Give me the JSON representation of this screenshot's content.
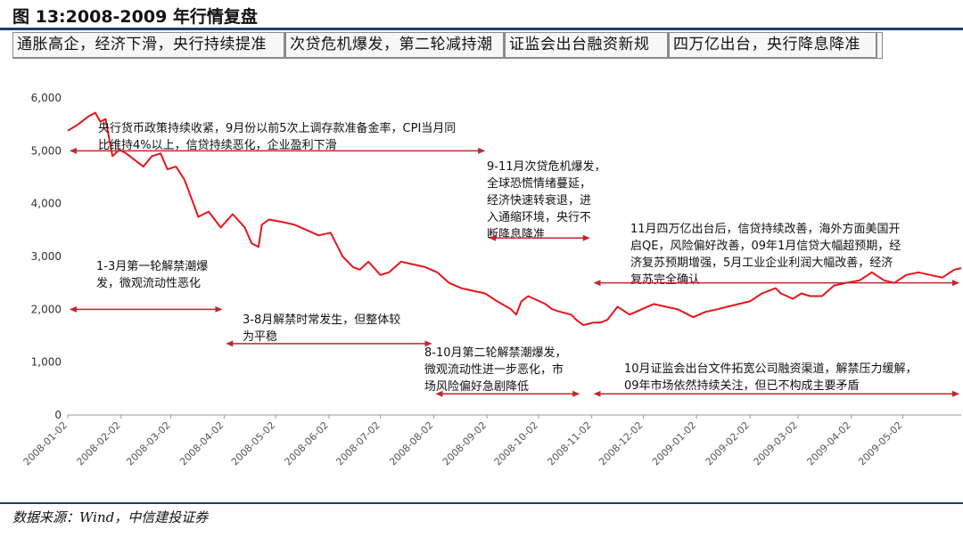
{
  "title": "图 13:2008-2009 年行情复盘",
  "phases": [
    "通胀高企，经济下滑，央行持续提准",
    "次贷危机爆发，第二轮减持潮",
    "证监会出台融资新规",
    "四万亿出台，央行降息降准"
  ],
  "source": "数据来源：Wind，中信建投证券",
  "colors": {
    "line": "#e8141b",
    "arrow": "#c0262c",
    "axis": "#999999",
    "title_rule": "#1f3e6b"
  },
  "chart_data": {
    "type": "line",
    "title": "",
    "xlabel": "",
    "ylabel": "",
    "ylim": [
      0,
      6000
    ],
    "yticks": [
      0,
      1000,
      2000,
      3000,
      4000,
      5000,
      6000
    ],
    "ytick_labels": [
      "0",
      "1,000",
      "2,000",
      "3,000",
      "4,000",
      "5,000",
      "6,000"
    ],
    "xlim": [
      "2008-01-02",
      "2009-06-05"
    ],
    "xticks": [
      "2008-01-02",
      "2008-02-02",
      "2008-03-02",
      "2008-04-02",
      "2008-05-02",
      "2008-06-02",
      "2008-07-02",
      "2008-08-02",
      "2008-09-02",
      "2008-10-02",
      "2008-11-02",
      "2008-12-02",
      "2009-01-02",
      "2009-02-02",
      "2009-03-02",
      "2009-04-02",
      "2009-05-02"
    ],
    "grid": false,
    "legend": "none",
    "series": [
      {
        "points": [
          [
            "2008-01-02",
            5380
          ],
          [
            "2008-01-08",
            5500
          ],
          [
            "2008-01-14",
            5650
          ],
          [
            "2008-01-18",
            5720
          ],
          [
            "2008-01-21",
            5550
          ],
          [
            "2008-01-24",
            5600
          ],
          [
            "2008-01-28",
            4900
          ],
          [
            "2008-02-01",
            5020
          ],
          [
            "2008-02-05",
            4950
          ],
          [
            "2008-02-15",
            4700
          ],
          [
            "2008-02-20",
            4900
          ],
          [
            "2008-02-25",
            4950
          ],
          [
            "2008-02-29",
            4650
          ],
          [
            "2008-03-05",
            4700
          ],
          [
            "2008-03-10",
            4450
          ],
          [
            "2008-03-14",
            4100
          ],
          [
            "2008-03-18",
            3750
          ],
          [
            "2008-03-24",
            3850
          ],
          [
            "2008-03-31",
            3550
          ],
          [
            "2008-04-07",
            3800
          ],
          [
            "2008-04-14",
            3550
          ],
          [
            "2008-04-18",
            3250
          ],
          [
            "2008-04-22",
            3180
          ],
          [
            "2008-04-24",
            3600
          ],
          [
            "2008-04-28",
            3700
          ],
          [
            "2008-05-06",
            3650
          ],
          [
            "2008-05-13",
            3600
          ],
          [
            "2008-05-20",
            3500
          ],
          [
            "2008-05-27",
            3400
          ],
          [
            "2008-06-03",
            3450
          ],
          [
            "2008-06-10",
            3000
          ],
          [
            "2008-06-16",
            2800
          ],
          [
            "2008-06-20",
            2750
          ],
          [
            "2008-06-25",
            2900
          ],
          [
            "2008-07-02",
            2650
          ],
          [
            "2008-07-07",
            2700
          ],
          [
            "2008-07-14",
            2900
          ],
          [
            "2008-07-21",
            2850
          ],
          [
            "2008-07-28",
            2800
          ],
          [
            "2008-08-04",
            2700
          ],
          [
            "2008-08-11",
            2500
          ],
          [
            "2008-08-18",
            2400
          ],
          [
            "2008-08-25",
            2350
          ],
          [
            "2008-09-01",
            2300
          ],
          [
            "2008-09-08",
            2150
          ],
          [
            "2008-09-16",
            2000
          ],
          [
            "2008-09-19",
            1900
          ],
          [
            "2008-09-22",
            2150
          ],
          [
            "2008-09-26",
            2250
          ],
          [
            "2008-10-06",
            2100
          ],
          [
            "2008-10-10",
            2000
          ],
          [
            "2008-10-15",
            1950
          ],
          [
            "2008-10-21",
            1900
          ],
          [
            "2008-10-24",
            1800
          ],
          [
            "2008-10-28",
            1700
          ],
          [
            "2008-11-03",
            1750
          ],
          [
            "2008-11-07",
            1750
          ],
          [
            "2008-11-11",
            1800
          ],
          [
            "2008-11-17",
            2050
          ],
          [
            "2008-11-24",
            1900
          ],
          [
            "2008-12-01",
            2000
          ],
          [
            "2008-12-08",
            2100
          ],
          [
            "2008-12-15",
            2050
          ],
          [
            "2008-12-22",
            2000
          ],
          [
            "2008-12-31",
            1850
          ],
          [
            "2009-01-07",
            1950
          ],
          [
            "2009-01-14",
            2000
          ],
          [
            "2009-01-20",
            2050
          ],
          [
            "2009-02-02",
            2150
          ],
          [
            "2009-02-09",
            2300
          ],
          [
            "2009-02-17",
            2400
          ],
          [
            "2009-02-20",
            2300
          ],
          [
            "2009-02-27",
            2200
          ],
          [
            "2009-03-04",
            2300
          ],
          [
            "2009-03-09",
            2250
          ],
          [
            "2009-03-16",
            2250
          ],
          [
            "2009-03-23",
            2450
          ],
          [
            "2009-03-30",
            2500
          ],
          [
            "2009-04-07",
            2550
          ],
          [
            "2009-04-14",
            2700
          ],
          [
            "2009-04-21",
            2550
          ],
          [
            "2009-04-27",
            2500
          ],
          [
            "2009-05-04",
            2650
          ],
          [
            "2009-05-11",
            2700
          ],
          [
            "2009-05-18",
            2650
          ],
          [
            "2009-05-25",
            2600
          ],
          [
            "2009-06-01",
            2750
          ],
          [
            "2009-06-05",
            2780
          ]
        ]
      }
    ],
    "annotations": [
      {
        "text_lines": [
          "央行货币政策持续收紧，9月份以前5次上调存款准备金率，CPI当月同",
          "比维持4%以上，信贷持续恶化，企业盈利下滑"
        ],
        "arrow_from": "2008-01-02",
        "arrow_to": "2008-09-02",
        "arrow_y": 5000
      },
      {
        "text_lines": [
          "9-11月次贷危机爆发，",
          "全球恐慌情绪蔓延，",
          "经济快速转衰退，进",
          "入通缩环境，央行不",
          "断降息降准"
        ],
        "arrow_from": "2008-09-02",
        "arrow_to": "2008-11-02",
        "arrow_y": 3350
      },
      {
        "text_lines": [
          "11月四万亿出台后，信贷持续改善，海外方面美国开",
          "启QE，风险偏好改善，09年1月信贷大幅超预期，经",
          "济复苏预期增强，5月工业企业利润大幅改善，经济",
          "复苏完全确认"
        ],
        "arrow_from": "2008-11-02",
        "arrow_to": "2009-06-05",
        "arrow_y": 2500
      },
      {
        "text_lines": [
          "1-3月第一轮解禁潮爆",
          "发，微观流动性恶化"
        ],
        "arrow_from": "2008-01-02",
        "arrow_to": "2008-04-02",
        "arrow_y": 2000
      },
      {
        "text_lines": [
          "3-8月解禁时常发生，但整体较",
          "为平稳"
        ],
        "arrow_from": "2008-04-02",
        "arrow_to": "2008-08-02",
        "arrow_y": 1350
      },
      {
        "text_lines": [
          "8-10月第二轮解禁潮爆发，",
          "微观流动性进一步恶化，市",
          "场风险偏好急剧降低"
        ],
        "arrow_from": "2008-08-02",
        "arrow_to": "2008-10-27",
        "arrow_y": 400
      },
      {
        "text_lines": [
          "10月证监会出台文件拓宽公司融资渠道，解禁压力缓解，",
          "09年市场依然持续关注，但已不构成主要矛盾"
        ],
        "arrow_from": "2008-11-02",
        "arrow_to": "2009-06-05",
        "arrow_y": 400
      }
    ]
  }
}
